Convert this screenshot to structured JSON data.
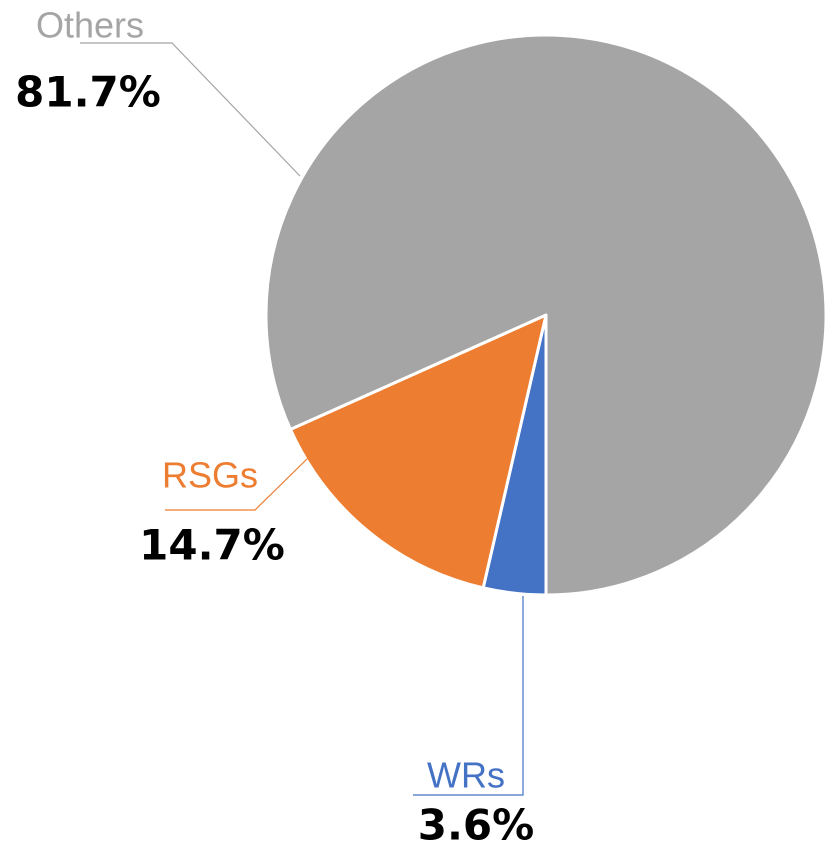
{
  "chart_data": {
    "type": "pie",
    "categories": [
      "WRs",
      "RSGs",
      "Others"
    ],
    "values": [
      3.6,
      14.7,
      81.7
    ],
    "value_labels": [
      "3.6%",
      "14.7%",
      "81.7%"
    ],
    "colors": [
      "#4472c4",
      "#ed7d31",
      "#a5a5a5"
    ]
  }
}
